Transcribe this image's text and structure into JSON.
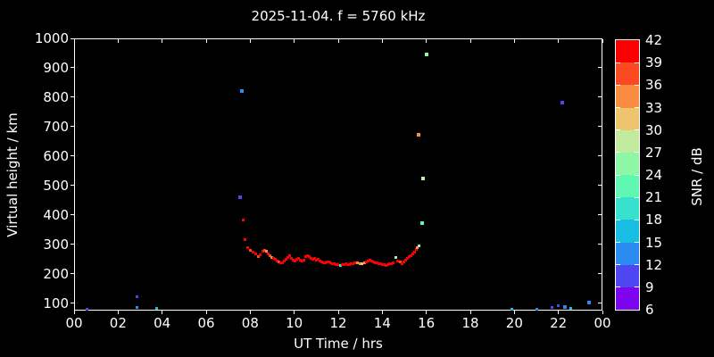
{
  "colors": {
    "background": "#000000",
    "foreground": "#ffffff"
  },
  "chart_data": {
    "type": "scatter",
    "title": "2025-11-04. f = 5760 kHz",
    "xlabel": "UT Time / hrs",
    "ylabel": "Virtual height / km",
    "xlim": [
      0,
      24
    ],
    "ylim": [
      75,
      1000
    ],
    "grid": false,
    "xticks": [
      {
        "v": 0,
        "label": "00"
      },
      {
        "v": 2,
        "label": "02"
      },
      {
        "v": 4,
        "label": "04"
      },
      {
        "v": 6,
        "label": "06"
      },
      {
        "v": 8,
        "label": "08"
      },
      {
        "v": 10,
        "label": "10"
      },
      {
        "v": 12,
        "label": "12"
      },
      {
        "v": 14,
        "label": "14"
      },
      {
        "v": 16,
        "label": "16"
      },
      {
        "v": 18,
        "label": "18"
      },
      {
        "v": 20,
        "label": "20"
      },
      {
        "v": 22,
        "label": "22"
      },
      {
        "v": 24,
        "label": "00"
      }
    ],
    "yticks": [
      100,
      200,
      300,
      400,
      500,
      600,
      700,
      800,
      900,
      1000
    ],
    "colorbar": {
      "label": "SNR / dB",
      "ticks_top_to_bottom": [
        "42",
        "39",
        "36",
        "33",
        "30",
        "27",
        "24",
        "21",
        "18",
        "15",
        "12",
        "9",
        "6"
      ],
      "range": [
        6,
        42
      ],
      "segment_colors_top_to_bottom": [
        "#fb0000",
        "#fb4a21",
        "#fa8c42",
        "#eec46f",
        "#c3eb9e",
        "#8df7a5",
        "#5ff7b2",
        "#38e1ce",
        "#18bde4",
        "#2a8cf0",
        "#4d46f1",
        "#7d04ef"
      ]
    },
    "points_format": "[ut_hours, virtual_height_km, snr_db, marker_px]",
    "points": [
      [
        0.6,
        79,
        10,
        3
      ],
      [
        2.84,
        85,
        13,
        3
      ],
      [
        2.87,
        121,
        10,
        3
      ],
      [
        3.75,
        82,
        16,
        3
      ],
      [
        7.55,
        460,
        10,
        4
      ],
      [
        7.62,
        822,
        13,
        4
      ],
      [
        7.7,
        384,
        40,
        3
      ],
      [
        7.76,
        317,
        40,
        3
      ],
      [
        7.88,
        289,
        40,
        3
      ],
      [
        8.0,
        281,
        37,
        3
      ],
      [
        8.12,
        274,
        40,
        3
      ],
      [
        8.24,
        268,
        40,
        3
      ],
      [
        8.37,
        259,
        37,
        3
      ],
      [
        8.45,
        265,
        40,
        3
      ],
      [
        8.57,
        277,
        40,
        3
      ],
      [
        8.65,
        281,
        37,
        3
      ],
      [
        8.73,
        277,
        34,
        3
      ],
      [
        8.81,
        268,
        40,
        3
      ],
      [
        8.9,
        262,
        37,
        3
      ],
      [
        8.98,
        256,
        34,
        3
      ],
      [
        9.06,
        252,
        40,
        3
      ],
      [
        9.14,
        249,
        40,
        3
      ],
      [
        9.22,
        243,
        40,
        3
      ],
      [
        9.3,
        240,
        37,
        3
      ],
      [
        9.38,
        237,
        40,
        3
      ],
      [
        9.46,
        237,
        40,
        3
      ],
      [
        9.54,
        243,
        40,
        3
      ],
      [
        9.63,
        249,
        40,
        3
      ],
      [
        9.71,
        255,
        40,
        3
      ],
      [
        9.79,
        261,
        40,
        3
      ],
      [
        9.87,
        252,
        40,
        3
      ],
      [
        9.95,
        246,
        40,
        3
      ],
      [
        10.03,
        243,
        40,
        3
      ],
      [
        10.11,
        249,
        40,
        3
      ],
      [
        10.19,
        252,
        40,
        3
      ],
      [
        10.27,
        246,
        40,
        3
      ],
      [
        10.35,
        243,
        40,
        3
      ],
      [
        10.44,
        246,
        40,
        3
      ],
      [
        10.52,
        258,
        40,
        3
      ],
      [
        10.6,
        261,
        40,
        3
      ],
      [
        10.68,
        258,
        40,
        3
      ],
      [
        10.76,
        252,
        40,
        3
      ],
      [
        10.84,
        249,
        40,
        3
      ],
      [
        10.92,
        252,
        40,
        3
      ],
      [
        11.0,
        246,
        40,
        3
      ],
      [
        11.09,
        249,
        40,
        3
      ],
      [
        11.17,
        243,
        40,
        3
      ],
      [
        11.25,
        240,
        40,
        3
      ],
      [
        11.33,
        237,
        40,
        3
      ],
      [
        11.41,
        237,
        40,
        3
      ],
      [
        11.49,
        240,
        40,
        3
      ],
      [
        11.57,
        240,
        40,
        3
      ],
      [
        11.65,
        237,
        40,
        3
      ],
      [
        11.74,
        234,
        40,
        3
      ],
      [
        11.82,
        234,
        40,
        3
      ],
      [
        11.9,
        231,
        40,
        3
      ],
      [
        11.98,
        231,
        40,
        3
      ],
      [
        12.1,
        228,
        19,
        3
      ],
      [
        12.18,
        231,
        40,
        3
      ],
      [
        12.26,
        231,
        40,
        3
      ],
      [
        12.34,
        234,
        40,
        3
      ],
      [
        12.43,
        231,
        40,
        3
      ],
      [
        12.51,
        231,
        40,
        3
      ],
      [
        12.59,
        234,
        40,
        3
      ],
      [
        12.67,
        234,
        40,
        3
      ],
      [
        12.75,
        237,
        40,
        3
      ],
      [
        12.87,
        237,
        34,
        3
      ],
      [
        13.0,
        234,
        34,
        3
      ],
      [
        13.08,
        234,
        31,
        3
      ],
      [
        13.2,
        237,
        34,
        3
      ],
      [
        13.28,
        240,
        40,
        3
      ],
      [
        13.36,
        243,
        40,
        3
      ],
      [
        13.44,
        246,
        40,
        3
      ],
      [
        13.52,
        243,
        40,
        3
      ],
      [
        13.6,
        240,
        40,
        3
      ],
      [
        13.69,
        237,
        40,
        3
      ],
      [
        13.77,
        237,
        40,
        3
      ],
      [
        13.85,
        234,
        40,
        3
      ],
      [
        13.93,
        234,
        40,
        3
      ],
      [
        14.01,
        231,
        40,
        3
      ],
      [
        14.09,
        231,
        40,
        3
      ],
      [
        14.17,
        228,
        40,
        3
      ],
      [
        14.25,
        231,
        40,
        3
      ],
      [
        14.33,
        234,
        40,
        3
      ],
      [
        14.41,
        234,
        40,
        3
      ],
      [
        14.5,
        237,
        40,
        3
      ],
      [
        14.62,
        256,
        25,
        3
      ],
      [
        14.7,
        243,
        40,
        3
      ],
      [
        14.82,
        240,
        37,
        3
      ],
      [
        14.9,
        234,
        40,
        3
      ],
      [
        14.98,
        240,
        40,
        3
      ],
      [
        15.06,
        247,
        40,
        3
      ],
      [
        15.15,
        253,
        40,
        3
      ],
      [
        15.23,
        259,
        40,
        3
      ],
      [
        15.31,
        262,
        40,
        3
      ],
      [
        15.39,
        268,
        40,
        3
      ],
      [
        15.47,
        274,
        40,
        3
      ],
      [
        15.55,
        283,
        40,
        3
      ],
      [
        15.59,
        290,
        34,
        3
      ],
      [
        15.67,
        296,
        25,
        3
      ],
      [
        15.63,
        673,
        34,
        4
      ],
      [
        15.83,
        371,
        22,
        4
      ],
      [
        15.87,
        524,
        28,
        4
      ],
      [
        16.0,
        944,
        25,
        4
      ],
      [
        19.9,
        79,
        16,
        3
      ],
      [
        21.0,
        79,
        13,
        3
      ],
      [
        21.7,
        85,
        10,
        3
      ],
      [
        22.0,
        91,
        10,
        3
      ],
      [
        22.17,
        783,
        10,
        4
      ],
      [
        22.3,
        88,
        13,
        4
      ],
      [
        22.55,
        82,
        16,
        3
      ],
      [
        23.4,
        103,
        13,
        4
      ]
    ]
  }
}
